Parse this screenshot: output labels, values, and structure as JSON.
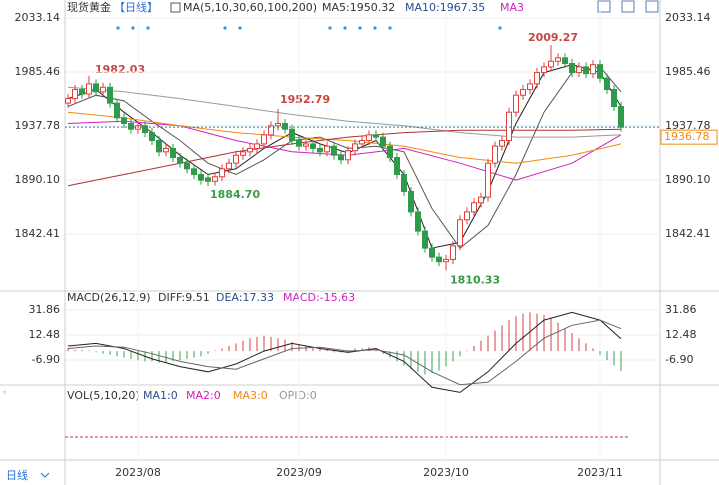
{
  "header": {
    "symbol": "现货黄金",
    "period": "【日线】",
    "ma_params": "MA(5,10,30,60,100,200)",
    "legend": [
      "MA5:1950.32",
      "MA10:1967.35",
      "MA3"
    ],
    "period_tab": "日线"
  },
  "macd_header": [
    "MACD(26,12,9)",
    "DIFF:9.51",
    "DEA:17.33",
    "MACD:-15.63"
  ],
  "volume_header": [
    "VOL(5,10,20)",
    "MA1:0",
    "MA2:0",
    "MA3:0",
    "OPID:0"
  ],
  "chart_data": [
    {
      "type": "candlestick",
      "categories": [
        null,
        null,
        null,
        null,
        null,
        null,
        null,
        null,
        null,
        null,
        "2023/08",
        null,
        null,
        null,
        null,
        null,
        null,
        null,
        null,
        null,
        null,
        null,
        null,
        null,
        null,
        null,
        null,
        null,
        null,
        null,
        null,
        null,
        null,
        "2023/09",
        null,
        null,
        null,
        null,
        null,
        null,
        null,
        null,
        null,
        null,
        null,
        null,
        null,
        null,
        null,
        null,
        null,
        null,
        null,
        null,
        "2023/10",
        null,
        null,
        null,
        null,
        null,
        null,
        null,
        null,
        null,
        null,
        null,
        null,
        null,
        null,
        null,
        null,
        null,
        null,
        null,
        null,
        null,
        "2023/11",
        null,
        null,
        null
      ],
      "open": [
        1958,
        1962,
        1970,
        1966,
        1975,
        1968,
        1972,
        1958,
        1945,
        1940,
        1935,
        1938,
        1932,
        1925,
        1915,
        1918,
        1910,
        1905,
        1900,
        1895,
        1892,
        1889,
        1893,
        1900,
        1905,
        1912,
        1915,
        1918,
        1922,
        1930,
        1938,
        1940,
        1935,
        1925,
        1920,
        1922,
        1918,
        1915,
        1920,
        1912,
        1908,
        1916,
        1922,
        1925,
        1930,
        1928,
        1920,
        1910,
        1895,
        1880,
        1862,
        1845,
        1830,
        1822,
        1818,
        1820,
        1832,
        1855,
        1862,
        1870,
        1875,
        1905,
        1920,
        1925,
        1950,
        1965,
        1970,
        1975,
        1985,
        1990,
        1995,
        1998,
        1993,
        1985,
        1990,
        1984,
        1992,
        1980,
        1970,
        1955
      ],
      "high": [
        1966,
        1974,
        1974,
        1982.03,
        1979,
        1976,
        1976,
        1962,
        1949,
        1944,
        1942,
        1942,
        1936,
        1929,
        1922,
        1922,
        1914,
        1909,
        1904,
        1899,
        1896,
        1897,
        1904,
        1909,
        1916,
        1919,
        1922,
        1926,
        1934,
        1942,
        1952.79,
        1944,
        1939,
        1929,
        1926,
        1926,
        1922,
        1924,
        1924,
        1916,
        1920,
        1926,
        1929,
        1934,
        1934,
        1932,
        1924,
        1914,
        1899,
        1884,
        1866,
        1849,
        1834,
        1826,
        1824,
        1836,
        1859,
        1866,
        1874,
        1879,
        1909,
        1924,
        1929,
        1954,
        1969,
        1974,
        1979,
        1989,
        1994,
        2009.27,
        2002,
        2002,
        1997,
        1994,
        1994,
        1996,
        1996,
        1984,
        1974,
        1959
      ],
      "low": [
        1954,
        1958,
        1962,
        1962,
        1964,
        1964,
        1954,
        1941,
        1936,
        1931,
        1931,
        1928,
        1921,
        1911,
        1911,
        1906,
        1901,
        1896,
        1891,
        1886,
        1884.7,
        1885,
        1889,
        1896,
        1901,
        1908,
        1911,
        1914,
        1918,
        1926,
        1934,
        1931,
        1921,
        1916,
        1916,
        1914,
        1911,
        1911,
        1908,
        1904,
        1904,
        1912,
        1918,
        1921,
        1924,
        1916,
        1906,
        1891,
        1876,
        1858,
        1841,
        1826,
        1818,
        1814,
        1810.33,
        1816,
        1828,
        1851,
        1858,
        1866,
        1871,
        1901,
        1916,
        1921,
        1946,
        1961,
        1966,
        1971,
        1981,
        1986,
        1991,
        1989,
        1981,
        1981,
        1980,
        1980,
        1976,
        1966,
        1951,
        1932.78
      ],
      "close": [
        1962,
        1970,
        1966,
        1975,
        1968,
        1972,
        1958,
        1945,
        1940,
        1935,
        1938,
        1932,
        1925,
        1915,
        1918,
        1910,
        1905,
        1900,
        1895,
        1890,
        1889,
        1893,
        1900,
        1905,
        1912,
        1915,
        1918,
        1922,
        1930,
        1938,
        1940,
        1935,
        1925,
        1920,
        1922,
        1918,
        1915,
        1920,
        1912,
        1908,
        1916,
        1922,
        1925,
        1930,
        1928,
        1920,
        1910,
        1895,
        1880,
        1862,
        1845,
        1830,
        1822,
        1818,
        1820,
        1832,
        1855,
        1862,
        1870,
        1875,
        1905,
        1920,
        1925,
        1950,
        1965,
        1970,
        1975,
        1985,
        1990,
        1995,
        1998,
        1993,
        1985,
        1990,
        1984,
        1992,
        1980,
        1970,
        1955,
        1936.78
      ],
      "up_color": "#e0403a",
      "down_color": "#2e9b4a",
      "ylim": [
        1793,
        2042
      ],
      "yticks": [
        2033.14,
        1985.46,
        1937.78,
        {
          "value": 1890.1,
          "label": "1890.10"
        },
        1842.41
      ],
      "last_price": 1936.78,
      "annotations": [
        "1982.03",
        "1952.79",
        "1884.70",
        "1810.33",
        "2009.27"
      ],
      "lines": [
        {
          "color": "#222222",
          "x": [
            0,
            4,
            8,
            12,
            16,
            20,
            24,
            28,
            32,
            36,
            40,
            44,
            48,
            52,
            56,
            60,
            64,
            68,
            72,
            76,
            79
          ],
          "values": [
            1962,
            1970,
            1950,
            1932,
            1912,
            1895,
            1900,
            1918,
            1932,
            1922,
            1914,
            1925,
            1895,
            1830,
            1835,
            1880,
            1940,
            1985,
            1992,
            1985,
            1955
          ]
        },
        {
          "color": "#555555",
          "x": [
            0,
            4,
            8,
            12,
            16,
            20,
            24,
            28,
            32,
            36,
            40,
            44,
            48,
            52,
            56,
            60,
            64,
            68,
            72,
            76,
            79
          ],
          "values": [
            1955,
            1965,
            1960,
            1942,
            1925,
            1905,
            1895,
            1908,
            1925,
            1928,
            1918,
            1920,
            1915,
            1865,
            1830,
            1850,
            1895,
            1950,
            1985,
            1990,
            1968
          ]
        },
        {
          "color": "#d020c0",
          "x": [
            0,
            8,
            16,
            24,
            32,
            40,
            48,
            56,
            64,
            72,
            79
          ],
          "values": [
            1940,
            1942,
            1938,
            1925,
            1915,
            1912,
            1918,
            1905,
            1890,
            1905,
            1930
          ]
        },
        {
          "color": "#f08a10",
          "x": [
            0,
            8,
            16,
            24,
            32,
            40,
            48,
            56,
            64,
            72,
            79
          ],
          "values": [
            1950,
            1945,
            1938,
            1932,
            1928,
            1925,
            1920,
            1910,
            1905,
            1912,
            1922
          ]
        },
        {
          "color": "#999999",
          "x": [
            0,
            8,
            16,
            24,
            32,
            40,
            48,
            56,
            64,
            72,
            79
          ],
          "values": [
            1972,
            1968,
            1962,
            1955,
            1948,
            1942,
            1938,
            1932,
            1928,
            1928,
            1930
          ]
        },
        {
          "color": "#b03030",
          "x": [
            0,
            8,
            16,
            24,
            32,
            40,
            48,
            56,
            64,
            72,
            79
          ],
          "values": [
            1885,
            1895,
            1905,
            1915,
            1922,
            1928,
            1932,
            1934,
            1934,
            1934,
            1935
          ]
        }
      ]
    },
    {
      "type": "macd",
      "ylim": [
        -24.7,
        45.8
      ],
      "yticks": [
        31.86,
        12.48,
        {
          "value": -6.9,
          "label": "-6.90"
        }
      ],
      "histogram": [
        2,
        1,
        1,
        0.5,
        -1,
        -2,
        -3,
        -4,
        -5,
        -6,
        -7,
        -8,
        -8,
        -9,
        -9,
        -8,
        -7,
        -6,
        -5,
        -4,
        -2,
        0.5,
        2,
        4,
        6,
        8,
        10,
        11,
        12,
        11,
        10,
        9,
        7,
        5,
        4,
        3,
        2,
        1,
        -1,
        -1,
        1,
        2,
        2,
        3,
        1,
        -2,
        -5,
        -8,
        -11,
        -14,
        -16,
        -18,
        -17,
        -15,
        -12,
        -8,
        -4,
        0.5,
        4,
        8,
        12,
        16,
        20,
        24,
        27,
        29,
        30,
        29,
        28,
        26,
        22,
        18,
        14,
        10,
        6,
        2,
        -3,
        -7,
        -11,
        -15.63
      ],
      "up_color": "#d04040",
      "down_color": "#3aa050",
      "series": [
        {
          "color": "#222222",
          "x": [
            0,
            4,
            8,
            12,
            16,
            20,
            24,
            28,
            32,
            36,
            40,
            44,
            48,
            52,
            56,
            60,
            64,
            68,
            72,
            76,
            79
          ],
          "values": [
            4,
            6,
            2,
            -6,
            -12,
            -16,
            -10,
            0,
            6,
            2,
            -1,
            2,
            -8,
            -28,
            -32,
            -16,
            6,
            24,
            30,
            24,
            9.51
          ]
        },
        {
          "color": "#666666",
          "x": [
            0,
            4,
            8,
            12,
            16,
            20,
            24,
            28,
            32,
            36,
            40,
            44,
            48,
            52,
            56,
            60,
            64,
            68,
            72,
            76,
            79
          ],
          "values": [
            2,
            4,
            3,
            -2,
            -8,
            -12,
            -14,
            -6,
            2,
            3,
            0,
            1,
            -3,
            -16,
            -26,
            -24,
            -8,
            10,
            20,
            24,
            17.33
          ]
        }
      ]
    }
  ]
}
